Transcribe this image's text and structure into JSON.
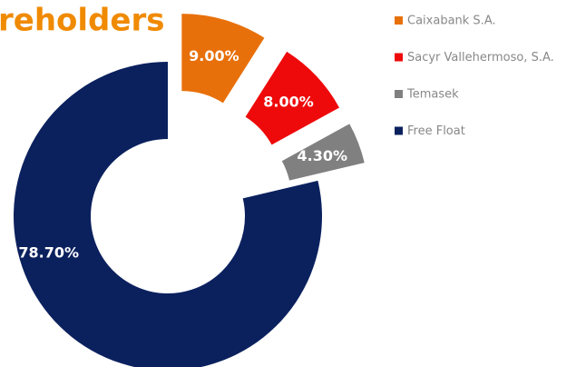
{
  "chart_data": {
    "type": "pie",
    "title": "reholders",
    "categories": [
      "Caixabank S.A.",
      "Sacyr Vallehermoso, S.A.",
      "Temasek",
      "Free Float"
    ],
    "values": [
      9.0,
      8.0,
      4.3,
      78.7
    ],
    "value_labels": [
      "9.00%",
      "8.00%",
      "4.30%",
      "78.70%"
    ],
    "colors": [
      "#e8700a",
      "#ee0a0a",
      "#808080",
      "#0b215e"
    ],
    "donut": true,
    "legend": "right"
  }
}
